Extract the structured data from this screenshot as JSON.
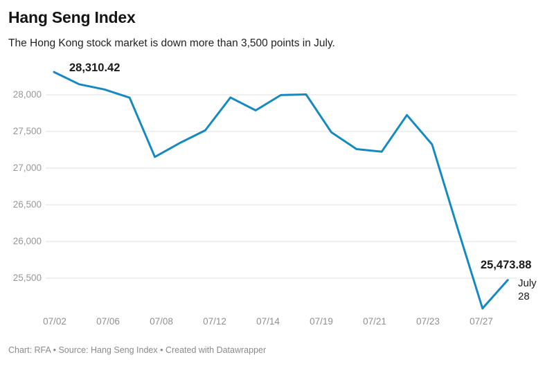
{
  "header": {
    "title": "Hang Seng Index",
    "subtitle": "The Hong Kong stock market is down more than 3,500 points in July."
  },
  "annotations": {
    "first_point_label": "28,310.42",
    "last_point_label": "25,473.88",
    "last_point_date": "July 28"
  },
  "footer": {
    "text": "Chart: RFA • Source: Hang Seng Index • Created with Datawrapper"
  },
  "colors": {
    "line": "#1589c1",
    "grid": "#e2e2e2",
    "axis_text": "#979797",
    "title_text": "#141414",
    "annotation_text": "#1a1a1a",
    "footer_text": "#8a8a8a"
  },
  "chart_data": {
    "type": "line",
    "title": "Hang Seng Index",
    "subtitle": "The Hong Kong stock market is down more than 3,500 points in July.",
    "xlabel": "",
    "ylabel": "",
    "x": [
      "07/02",
      "07/05",
      "07/06",
      "07/07",
      "07/08",
      "07/09",
      "07/12",
      "07/13",
      "07/14",
      "07/15",
      "07/16",
      "07/19",
      "07/20",
      "07/21",
      "07/22",
      "07/23",
      "07/26",
      "07/27",
      "07/28"
    ],
    "values": [
      28310.42,
      28143.5,
      28072.86,
      27960.62,
      27153.13,
      27344.54,
      27515.24,
      27963.41,
      27787.46,
      27996.27,
      28004.68,
      27489.78,
      27259.25,
      27224.58,
      27723.84,
      27321.98,
      26192.32,
      25086.43,
      25473.88
    ],
    "series_name": "Hang Seng Index",
    "point_labels": {
      "07/02": "28,310.42",
      "07/28": "25,473.88"
    },
    "xticks": [
      "07/02",
      "07/06",
      "07/08",
      "07/12",
      "07/14",
      "07/19",
      "07/21",
      "07/23",
      "07/27"
    ],
    "yticks": [
      {
        "value": 28000,
        "label": "28,000"
      },
      {
        "value": 27500,
        "label": "27,500"
      },
      {
        "value": 27000,
        "label": "27,000"
      },
      {
        "value": 26500,
        "label": "26,500"
      },
      {
        "value": 26000,
        "label": "26,000"
      },
      {
        "value": 25500,
        "label": "25,500"
      }
    ],
    "ylim": [
      24900,
      28400
    ],
    "grid": true,
    "legend_position": "none"
  }
}
